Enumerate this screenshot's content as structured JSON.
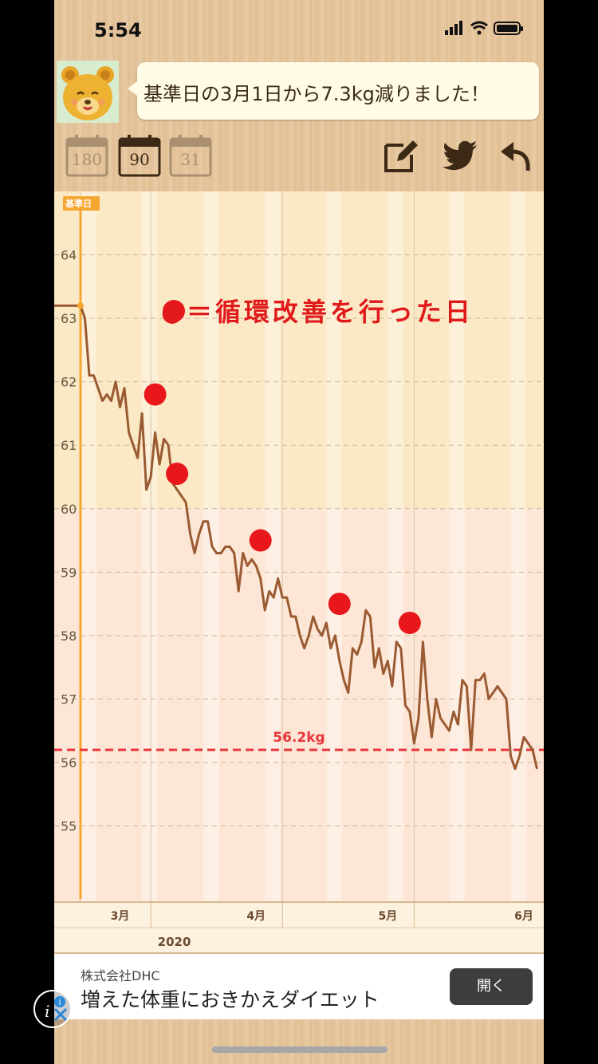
{
  "status": {
    "time": "5:54"
  },
  "message": {
    "text": "基準日の3月1日から7.3kg減りました！"
  },
  "periods": [
    {
      "label": "180",
      "active": false
    },
    {
      "label": "90",
      "active": true
    },
    {
      "label": "31",
      "active": false
    }
  ],
  "toolbar": {
    "icons": [
      "edit-icon",
      "twitter-icon",
      "back-arrow-icon"
    ]
  },
  "chart_data": {
    "type": "line",
    "baseline_tag": "基準日",
    "annotation": "●＝循環改善を行った日",
    "target_label": "56.2kg",
    "target_value": 56.2,
    "ylim": [
      53.8,
      65.0
    ],
    "yticks": [
      "55",
      "56",
      "57",
      "58",
      "59",
      "60",
      "61",
      "62",
      "63",
      "64"
    ],
    "xlim": [
      0,
      105
    ],
    "month_labels": [
      {
        "label": "3月",
        "x": 9
      },
      {
        "label": "4月",
        "x": 40
      },
      {
        "label": "5月",
        "x": 70
      },
      {
        "label": "6月",
        "x": 101
      }
    ],
    "year_label": "2020",
    "marker_days": [
      17,
      22,
      41,
      59,
      75
    ],
    "marker_values": [
      61.8,
      60.55,
      59.5,
      58.5,
      58.2
    ],
    "series": [
      {
        "name": "",
        "x": [
          0,
          1,
          2,
          3,
          4,
          5,
          6,
          7,
          8,
          9,
          10,
          11,
          12,
          13,
          14,
          15,
          16,
          17,
          18,
          19,
          20,
          21,
          22,
          23,
          24,
          25,
          26,
          27,
          28,
          29,
          30,
          31,
          32,
          33,
          34,
          35,
          36,
          37,
          38,
          39,
          40,
          41,
          42,
          43,
          44,
          45,
          46,
          47,
          48,
          49,
          50,
          51,
          52,
          53,
          54,
          55,
          56,
          57,
          58,
          59,
          60,
          61,
          62,
          63,
          64,
          65,
          66,
          67,
          68,
          69,
          70,
          71,
          72,
          73,
          74,
          75,
          76,
          77,
          78,
          79,
          80,
          81,
          82,
          83,
          84,
          85,
          86,
          87,
          88,
          89,
          90,
          91,
          92,
          93,
          94,
          95,
          96,
          97,
          98,
          99,
          100,
          101,
          102,
          103,
          104
        ],
        "values": [
          63.2,
          63.0,
          62.1,
          62.1,
          61.9,
          61.7,
          61.8,
          61.7,
          62.0,
          61.6,
          61.9,
          61.2,
          61.0,
          60.8,
          61.5,
          60.3,
          60.5,
          61.2,
          60.7,
          61.1,
          61.0,
          60.4,
          60.3,
          60.2,
          60.1,
          59.6,
          59.3,
          59.6,
          59.8,
          59.8,
          59.4,
          59.3,
          59.3,
          59.4,
          59.4,
          59.3,
          58.7,
          59.3,
          59.1,
          59.2,
          59.1,
          58.9,
          58.4,
          58.7,
          58.6,
          58.9,
          58.6,
          58.6,
          58.3,
          58.3,
          58.0,
          57.8,
          58.0,
          58.3,
          58.1,
          58.0,
          58.2,
          57.8,
          58.0,
          57.6,
          57.3,
          57.1,
          57.8,
          57.7,
          57.9,
          58.4,
          58.3,
          57.5,
          57.8,
          57.4,
          57.6,
          57.2,
          57.9,
          57.8,
          56.9,
          56.8,
          56.3,
          56.7,
          57.9,
          57.0,
          56.4,
          57.0,
          56.7,
          56.6,
          56.5,
          56.8,
          56.6,
          57.3,
          57.2,
          56.2,
          57.3,
          57.3,
          57.4,
          57.0,
          57.1,
          57.2,
          57.1,
          57.0,
          56.1,
          55.9,
          56.1,
          56.4,
          56.3,
          56.2,
          55.9
        ]
      }
    ]
  },
  "ad": {
    "sponsor": "株式会社DHC",
    "title": "増えた体重におきかえダイエット",
    "button": "開く"
  }
}
